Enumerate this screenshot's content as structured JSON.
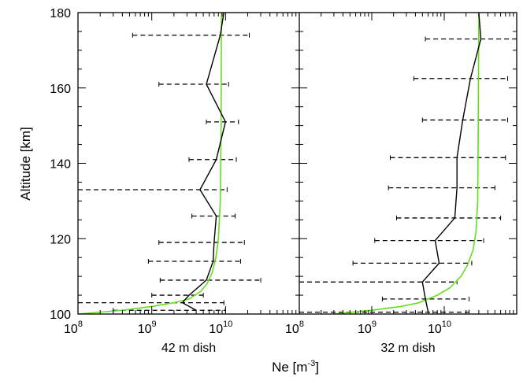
{
  "chart_data": {
    "type": "line",
    "ylabel": "Altitude [km]",
    "xlabel": "Ne [m",
    "xlabel_exponent": "-3",
    "xlabel_close": "]",
    "xscale": "log",
    "xlim": [
      100000000.0,
      100000000000.0
    ],
    "ylim": [
      100,
      180
    ],
    "yticks": [
      "100",
      "120",
      "140",
      "160",
      "180"
    ],
    "xticks": [
      {
        "base": "10",
        "exp": "8",
        "value": 100000000.0
      },
      {
        "base": "10",
        "exp": "9",
        "value": 1000000000.0
      },
      {
        "base": "10",
        "exp": "10",
        "value": 10000000000.0
      }
    ],
    "colors": {
      "measured": "#000000",
      "model": "#66dd22",
      "errorbar": "#000000"
    },
    "panels": [
      {
        "label": "42 m dish",
        "measured": [
          {
            "alt": 101,
            "ne": 4000000000.0,
            "lo": 300000000.0,
            "hi": 10000000000.0
          },
          {
            "alt": 103,
            "ne": 2600000000.0,
            "lo": 100000000.0,
            "hi": 9500000000.0
          },
          {
            "alt": 105,
            "ne": 3200000000.0,
            "lo": 1000000000.0,
            "hi": 5000000000.0
          },
          {
            "alt": 109,
            "ne": 5500000000.0,
            "lo": 1300000000.0,
            "hi": 30000000000.0
          },
          {
            "alt": 114,
            "ne": 6800000000.0,
            "lo": 900000000.0,
            "hi": 16000000000.0
          },
          {
            "alt": 119,
            "ne": 7000000000.0,
            "lo": 1250000000.0,
            "hi": 18000000000.0
          },
          {
            "alt": 126,
            "ne": 7500000000.0,
            "lo": 3500000000.0,
            "hi": 13500000000.0
          },
          {
            "alt": 133,
            "ne": 4500000000.0,
            "lo": 100000000.0,
            "hi": 10500000000.0
          },
          {
            "alt": 141,
            "ne": 7500000000.0,
            "lo": 3200000000.0,
            "hi": 14000000000.0
          },
          {
            "alt": 151,
            "ne": 10000000000.0,
            "lo": 5500000000.0,
            "hi": 15000000000.0
          },
          {
            "alt": 161,
            "ne": 5500000000.0,
            "lo": 1250000000.0,
            "hi": 11000000000.0
          },
          {
            "alt": 174,
            "ne": 8500000000.0,
            "lo": 550000000.0,
            "hi": 21000000000.0
          },
          {
            "alt": 180,
            "ne": 9500000000.0
          }
        ],
        "model": [
          {
            "alt": 100,
            "ne": 100000000.0
          },
          {
            "alt": 101,
            "ne": 400000000.0
          },
          {
            "alt": 102,
            "ne": 1000000000.0
          },
          {
            "alt": 103,
            "ne": 2000000000.0
          },
          {
            "alt": 104,
            "ne": 3200000000.0
          },
          {
            "alt": 106,
            "ne": 4600000000.0
          },
          {
            "alt": 108,
            "ne": 5600000000.0
          },
          {
            "alt": 111,
            "ne": 6600000000.0
          },
          {
            "alt": 115,
            "ne": 7400000000.0
          },
          {
            "alt": 120,
            "ne": 8000000000.0
          },
          {
            "alt": 130,
            "ne": 8500000000.0
          },
          {
            "alt": 150,
            "ne": 8700000000.0
          },
          {
            "alt": 180,
            "ne": 8800000000.0
          }
        ]
      },
      {
        "label": "32 m dish",
        "measured": [
          {
            "alt": 100.5,
            "ne": 6000000000.0,
            "lo": 100000000.0,
            "hi": 22000000000.0
          },
          {
            "alt": 104,
            "ne": 5500000000.0,
            "lo": 1400000000.0,
            "hi": 22000000000.0
          },
          {
            "alt": 108.5,
            "ne": 5000000000.0,
            "lo": 100000000.0,
            "hi": 15000000000.0
          },
          {
            "alt": 113.5,
            "ne": 8500000000.0,
            "lo": 550000000.0,
            "hi": 24000000000.0
          },
          {
            "alt": 119.5,
            "ne": 7500000000.0,
            "lo": 1100000000.0,
            "hi": 35000000000.0
          },
          {
            "alt": 125.5,
            "ne": 14000000000.0,
            "lo": 2200000000.0,
            "hi": 60000000000.0
          },
          {
            "alt": 133.5,
            "ne": 15000000000.0,
            "lo": 1700000000.0,
            "hi": 50000000000.0
          },
          {
            "alt": 141.5,
            "ne": 15000000000.0,
            "lo": 1800000000.0,
            "hi": 70000000000.0
          },
          {
            "alt": 151.5,
            "ne": 18000000000.0,
            "lo": 5000000000.0,
            "hi": 75000000000.0
          },
          {
            "alt": 162.5,
            "ne": 23000000000.0,
            "lo": 3800000000.0,
            "hi": 75000000000.0
          },
          {
            "alt": 173,
            "ne": 32000000000.0,
            "lo": 5500000000.0,
            "hi": 100000000000.0
          },
          {
            "alt": 180,
            "ne": 30000000000.0
          }
        ],
        "model": [
          {
            "alt": 100,
            "ne": 300000000.0
          },
          {
            "alt": 101,
            "ne": 1000000000.0
          },
          {
            "alt": 102,
            "ne": 2500000000.0
          },
          {
            "alt": 103,
            "ne": 4500000000.0
          },
          {
            "alt": 105,
            "ne": 8000000000.0
          },
          {
            "alt": 107,
            "ne": 12000000000.0
          },
          {
            "alt": 110,
            "ne": 17000000000.0
          },
          {
            "alt": 113,
            "ne": 21000000000.0
          },
          {
            "alt": 117,
            "ne": 25000000000.0
          },
          {
            "alt": 122,
            "ne": 27500000000.0
          },
          {
            "alt": 130,
            "ne": 29000000000.0
          },
          {
            "alt": 150,
            "ne": 29500000000.0
          },
          {
            "alt": 180,
            "ne": 30000000000.0
          }
        ]
      }
    ]
  }
}
